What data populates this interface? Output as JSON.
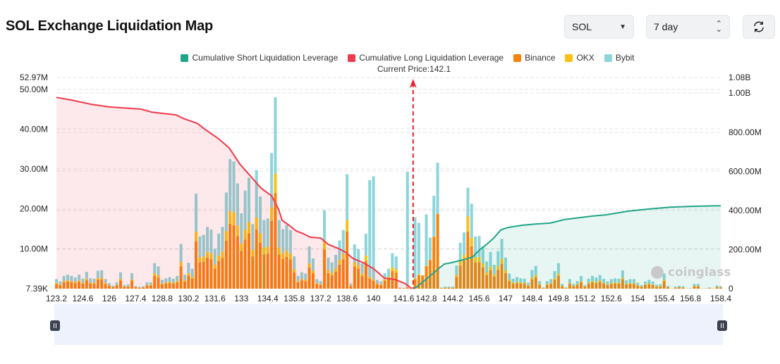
{
  "header": {
    "title": "SOL Exchange Liquidation Map",
    "symbol_select": "SOL",
    "period_select": "7 day",
    "refresh_icon": "refresh-icon"
  },
  "colors": {
    "short": "#20a587",
    "long": "#f0394b",
    "binance": "#f7820c",
    "okx": "#fbc012",
    "bybit": "#8dd5d9",
    "slider": "#eef2fd"
  },
  "watermark": "coinglass",
  "chart_data": {
    "type": "bar",
    "legend": [
      "Cumulative Short Liquidation Leverage",
      "Cumulative Long Liquidation Leverage",
      "Binance",
      "OKX",
      "Bybit"
    ],
    "legend_placement": "top",
    "current_price_label": "Current Price:142.1",
    "current_price": 142.1,
    "x_range": [
      123.2,
      158.4
    ],
    "price_step": 0.2,
    "x_ticks": [
      "123.2",
      "124.6",
      "126",
      "127.4",
      "128.8",
      "130.2",
      "131.6",
      "133",
      "134.4",
      "135.8",
      "137.2",
      "138.6",
      "140",
      "141.6",
      "142.8",
      "144.2",
      "145.6",
      "147",
      "148.4",
      "149.8",
      "151.2",
      "152.6",
      "154",
      "155.4",
      "156.8",
      "158.4"
    ],
    "left_axis": {
      "min": 0.00739,
      "max": 52.97,
      "unit": "M",
      "tick_labels": [
        "7.39K",
        "10.00M",
        "20.00M",
        "30.00M",
        "40.00M",
        "50.00M",
        "52.97M"
      ],
      "tick_values": [
        0,
        10,
        20,
        30,
        40,
        50,
        52.97
      ]
    },
    "right_axis": {
      "min": 0,
      "max": 1080,
      "unit": "M",
      "tick_labels": [
        "0",
        "200.00M",
        "400.00M",
        "600.00M",
        "800.00M",
        "1.00B",
        "1.08B"
      ],
      "tick_values": [
        0,
        200,
        400,
        600,
        800,
        1000,
        1080
      ]
    },
    "grid": true,
    "series": [
      {
        "name": "Binance",
        "stack": "exchange",
        "values": [
          1.2,
          0.9,
          1.6,
          1.75,
          1.6,
          1.4,
          1.75,
          1.25,
          2.1,
          1.3,
          1.25,
          2.25,
          2.3,
          1.2,
          0.7,
          0.4,
          0.8,
          2.05,
          0.45,
          0.55,
          1.95,
          0.35,
          0.25,
          0.3,
          0.8,
          0.8,
          3.2,
          2.8,
          1.1,
          1.3,
          1.45,
          1.25,
          1.6,
          5.6,
          1.75,
          3.25,
          2.5,
          11.9,
          6.55,
          6.75,
          7.75,
          7.4,
          5.0,
          6.9,
          7.75,
          12.05,
          16.25,
          15.95,
          13.2,
          9.45,
          12.3,
          13.9,
          8.1,
          14.85,
          11.55,
          8.6,
          8.8,
          17.0,
          24.0,
          8.6,
          7.45,
          8.0,
          7.35,
          4.05,
          1.6,
          2.05,
          1.9,
          5.3,
          3.8,
          1.2,
          0.95,
          9.85,
          3.9,
          3.3,
          4.25,
          6.05,
          7.35,
          14.35,
          0.65,
          5.55,
          4.95,
          3.15,
          6.9,
          2.5,
          2.0,
          1.1,
          0.9,
          1.95,
          2.5,
          4.45,
          4.05,
          0.15,
          0.1,
          0.3,
          0.05,
          2.4,
          3.4,
          3.3,
          5.7,
          7.2,
          13.0,
          18.7,
          0.15,
          0.25,
          0.25,
          0.25,
          2.9,
          5.75,
          7.05,
          14.3,
          10.65,
          6.55,
          6.6,
          5.3,
          3.4,
          4.6,
          3.0,
          4.7,
          6.25,
          3.9,
          1.9,
          1.25,
          1.45,
          1.3,
          1.25,
          0.75,
          2.35,
          2.85,
          0.95,
          0.15,
          0.95,
          1.2,
          2.2,
          3.2,
          0.6,
          0.15,
          1.2,
          0.6,
          0.95,
          1.6,
          0.45,
          1.25,
          1.6,
          1.4,
          1.7,
          1.25,
          0.9,
          1.2,
          1.3,
          1.25,
          2.3,
          1.05,
          1.2,
          1.2,
          0.75,
          0.45,
          0.9,
          1.1,
          0.9,
          0.5,
          0.55,
          1.9,
          0.35,
          0.05,
          0.25,
          0.35,
          0.3,
          0.05,
          0.05,
          0.6,
          0.6,
          0.05,
          0.05,
          0.15,
          0.05,
          0.4,
          0.3
        ]
      },
      {
        "name": "OKX",
        "stack": "exchange",
        "values": [
          0.24,
          0.18,
          0.32,
          0.35,
          0.32,
          0.28,
          0.35,
          0.25,
          0.42,
          0.26,
          0.25,
          0.45,
          0.46,
          0.24,
          0.14,
          0.08,
          0.16,
          0.41,
          0.09,
          0.11,
          0.39,
          0.07,
          0.05,
          0.06,
          0.16,
          0.16,
          0.64,
          0.56,
          0.22,
          0.26,
          0.29,
          0.25,
          0.32,
          1.12,
          0.35,
          0.65,
          0.5,
          2.38,
          1.31,
          1.35,
          1.55,
          1.48,
          1.0,
          1.38,
          1.55,
          2.41,
          3.25,
          3.19,
          2.64,
          1.89,
          2.46,
          2.78,
          1.62,
          2.97,
          2.31,
          1.72,
          1.76,
          3.4,
          4.8,
          1.72,
          1.49,
          1.6,
          1.47,
          0.81,
          0.32,
          0.41,
          0.38,
          1.06,
          0.76,
          0.24,
          0.19,
          1.97,
          0.78,
          0.66,
          0.85,
          1.21,
          1.47,
          2.87,
          0.13,
          1.11,
          0.99,
          0.63,
          1.38,
          0.5,
          0.3,
          0.22,
          0.18,
          0.39,
          0.5,
          0.89,
          0.81,
          0.03,
          0.02,
          0.1,
          0.01,
          0.2,
          0.2,
          0.05,
          0.1,
          0.1,
          0.1,
          0.1,
          0.03,
          0.05,
          0.05,
          0.05,
          0.6,
          1.15,
          1.41,
          3.8,
          2.13,
          1.31,
          1.32,
          1.06,
          0.68,
          0.92,
          0.6,
          0.94,
          1.25,
          0.78,
          0.38,
          0.25,
          0.29,
          0.26,
          0.25,
          0.15,
          0.47,
          0.57,
          0.19,
          0.03,
          0.19,
          0.24,
          0.44,
          0.64,
          0.12,
          0.03,
          0.24,
          0.12,
          0.19,
          0.32,
          0.09,
          0.25,
          0.32,
          0.28,
          0.34,
          0.25,
          0.18,
          0.24,
          0.26,
          0.25,
          0.46,
          0.21,
          0.24,
          0.24,
          0.15,
          0.09,
          0.18,
          0.22,
          0.18,
          0.1,
          0.11,
          0.38,
          0.07,
          0.01,
          0.05,
          0.07,
          0.06,
          0.01,
          0.01,
          0.12,
          0.12,
          0.01,
          0.01,
          0.03,
          0.01,
          0.08,
          0.06
        ]
      },
      {
        "name": "Bybit",
        "stack": "exchange",
        "values": [
          0.96,
          0.72,
          1.28,
          1.4,
          1.28,
          1.12,
          1.4,
          1.0,
          1.68,
          1.04,
          1.0,
          1.8,
          1.84,
          0.96,
          0.56,
          0.32,
          0.64,
          1.64,
          0.36,
          0.44,
          1.56,
          0.28,
          0.2,
          0.24,
          0.64,
          0.64,
          2.56,
          2.24,
          0.88,
          1.04,
          1.16,
          1.0,
          1.28,
          4.48,
          1.4,
          2.6,
          2.0,
          9.52,
          5.24,
          5.4,
          6.2,
          5.92,
          4.0,
          5.52,
          6.2,
          9.64,
          13.0,
          12.76,
          10.56,
          7.56,
          9.84,
          11.12,
          6.48,
          11.88,
          9.24,
          6.88,
          7.04,
          13.6,
          19.2,
          6.88,
          5.96,
          6.4,
          5.88,
          3.24,
          1.28,
          1.64,
          1.52,
          4.24,
          3.04,
          0.96,
          0.76,
          7.88,
          3.12,
          2.64,
          3.4,
          4.84,
          5.88,
          11.48,
          0.52,
          4.44,
          3.96,
          2.52,
          5.52,
          24.2,
          25.9,
          0.88,
          0.72,
          1.56,
          2.0,
          3.56,
          3.24,
          0.12,
          0.08,
          28.9,
          0.04,
          15.3,
          12.9,
          0.05,
          12.8,
          5.5,
          10.2,
          12.8,
          0.12,
          0.2,
          0.2,
          0.2,
          2.3,
          4.6,
          5.64,
          7.2,
          8.52,
          5.24,
          5.28,
          4.24,
          2.72,
          3.68,
          2.4,
          3.76,
          5.0,
          3.12,
          1.52,
          1.0,
          1.16,
          1.04,
          1.0,
          0.6,
          1.88,
          2.28,
          0.76,
          0.12,
          0.76,
          0.96,
          1.76,
          2.56,
          0.48,
          0.12,
          0.96,
          0.48,
          0.76,
          1.28,
          0.36,
          1.0,
          1.28,
          1.12,
          1.36,
          1.0,
          0.72,
          0.96,
          1.04,
          1.0,
          1.84,
          0.84,
          0.96,
          0.96,
          0.6,
          0.36,
          0.72,
          0.88,
          0.72,
          0.4,
          0.44,
          1.52,
          0.28,
          0.04,
          0.2,
          0.28,
          0.24,
          0.04,
          0.04,
          0.48,
          0.48,
          0.04,
          0.04,
          0.12,
          0.04,
          0.32,
          0.24
        ]
      },
      {
        "name": "Cumulative Long Liquidation Leverage",
        "type": "area-line",
        "axis": "right",
        "x": [
          123.2,
          123.95,
          125.07,
          126.0,
          127.68,
          128.24,
          129.55,
          129.93,
          130.67,
          131.05,
          131.8,
          132.36,
          132.92,
          133.48,
          134.04,
          134.6,
          134.97,
          135.16,
          135.53,
          135.91,
          136.28,
          136.65,
          137.21,
          137.59,
          138.15,
          138.52,
          138.9,
          139.46,
          140.02,
          140.58,
          141.14,
          141.7,
          142.03
        ],
        "y": [
          978,
          965,
          942,
          929,
          918,
          903,
          888,
          870,
          845,
          816,
          766,
          719,
          637,
          576,
          514,
          475,
          406,
          349,
          324,
          295,
          281,
          263,
          259,
          227,
          205,
          187,
          155,
          133,
          101,
          54,
          47,
          25,
          0
        ]
      },
      {
        "name": "Cumulative Short Liquidation Leverage",
        "type": "area-line",
        "axis": "right",
        "x": [
          142.1,
          142.26,
          142.63,
          143.0,
          143.38,
          143.75,
          144.13,
          144.87,
          145.25,
          145.62,
          146.0,
          146.37,
          146.74,
          147.12,
          147.86,
          148.61,
          149.36,
          150.1,
          151.6,
          152.35,
          153.47,
          154.59,
          155.71,
          156.83,
          158.4
        ],
        "y": [
          0,
          7,
          36,
          65,
          97,
          126,
          133,
          151,
          162,
          198,
          227,
          259,
          300,
          313,
          324,
          331,
          335,
          353,
          371,
          378,
          396,
          407,
          417,
          421,
          424
        ]
      }
    ]
  }
}
